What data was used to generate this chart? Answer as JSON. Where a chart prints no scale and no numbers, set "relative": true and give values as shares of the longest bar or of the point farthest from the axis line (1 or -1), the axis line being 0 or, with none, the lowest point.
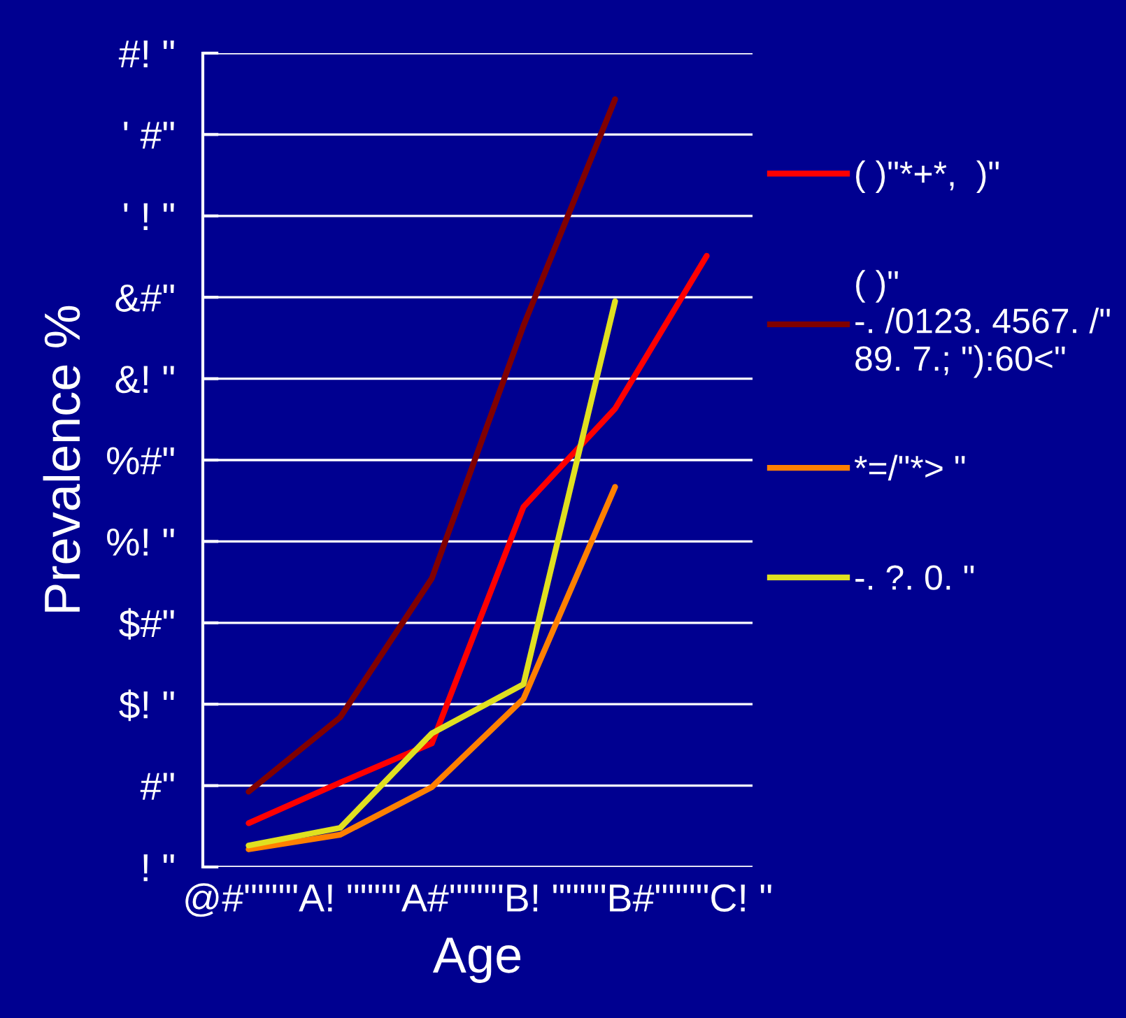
{
  "chart_data": {
    "type": "line",
    "xlabel": "Age",
    "ylabel": "Prevalence %",
    "relative": true,
    "categories": [
      null,
      null,
      null,
      null,
      null,
      null
    ],
    "annotations": [
      "@#\"\"\"\"A! \"\"\"\"A#\"\"\"\"B! \"\"\"\"B#\"\"\"\"C! \"",
      "! \"",
      "#\"",
      "$! \"",
      "$#\"",
      "%! \"",
      "%#\"",
      "&! \"",
      "&#\"",
      "' ! \"",
      "' #\"",
      "#! \""
    ],
    "series": [
      {
        "name": "( )\"*+*,  )\"",
        "color": "#ff0000",
        "values": [
          0.057,
          0.11,
          0.161,
          0.469,
          0.597,
          0.796
        ]
      },
      {
        "name": "( )\"\n-. /0123. 4567. /\"\n89. 7.; \"):60<\"",
        "color": "#800000",
        "values": [
          0.098,
          0.195,
          0.376,
          0.705,
          1,
          null
        ]
      },
      {
        "name": "*=/\"*> \"",
        "color": "#ff8000",
        "values": [
          0.023,
          0.042,
          0.104,
          0.219,
          0.495,
          null
        ]
      },
      {
        "name": "-. ?. 0. \"",
        "color": "#e0e020",
        "values": [
          0.028,
          0.051,
          0.174,
          0.238,
          0.737,
          null
        ]
      }
    ],
    "grid": "y",
    "legend": "right",
    "marker": "none",
    "line_style": "solid"
  }
}
